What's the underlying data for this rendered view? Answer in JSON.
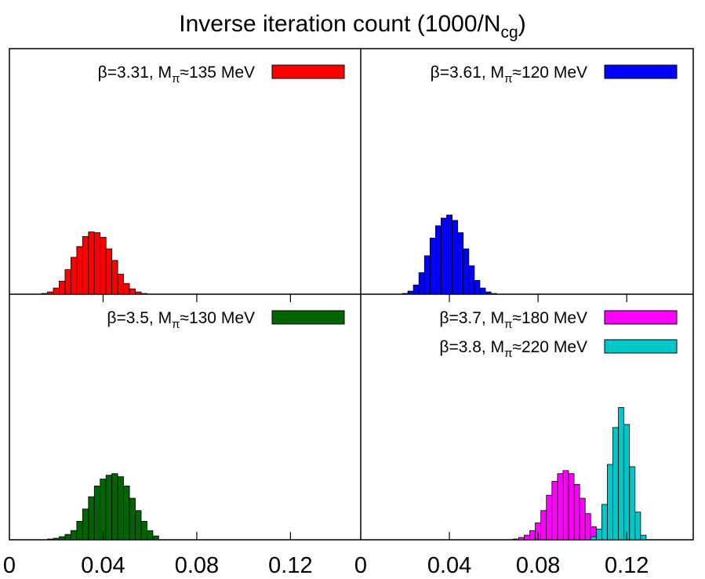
{
  "title": {
    "main": "Inverse iteration count (1000/N",
    "sub": "cg",
    "close": ")"
  },
  "chart_data": [
    {
      "type": "bar",
      "panel": "top-left",
      "xlim": [
        0,
        0.15
      ],
      "xticks": [],
      "legend_placement": "top-right",
      "bin_width": 0.0025,
      "series": [
        {
          "name": "β=3.31, Mπ≈135 MeV",
          "legend": {
            "prefix": "β=3.31, M",
            "sub": "π",
            "suffix": "≈135 MeV"
          },
          "color": "#ff0000",
          "x": [
            0.015,
            0.0175,
            0.02,
            0.0225,
            0.025,
            0.0275,
            0.03,
            0.0325,
            0.035,
            0.0375,
            0.04,
            0.0425,
            0.045,
            0.0475,
            0.05,
            0.0525,
            0.055,
            0.0575
          ],
          "counts": [
            1,
            3,
            8,
            17,
            32,
            48,
            62,
            75,
            81,
            80,
            74,
            59,
            44,
            26,
            14,
            7,
            3,
            1
          ]
        }
      ]
    },
    {
      "type": "bar",
      "panel": "top-right",
      "xlim": [
        0,
        0.15
      ],
      "xticks": [],
      "legend_placement": "top-right",
      "bin_width": 0.0025,
      "series": [
        {
          "name": "β=3.61, Mπ≈120 MeV",
          "legend": {
            "prefix": "β=3.61, M",
            "sub": "π",
            "suffix": "≈120 MeV"
          },
          "color": "#0000ff",
          "x": [
            0.02,
            0.0225,
            0.025,
            0.0275,
            0.03,
            0.0325,
            0.035,
            0.0375,
            0.04,
            0.0425,
            0.045,
            0.0475,
            0.05,
            0.0525,
            0.055,
            0.0575,
            0.06
          ],
          "counts": [
            1,
            4,
            12,
            28,
            50,
            73,
            89,
            99,
            103,
            96,
            80,
            59,
            37,
            18,
            8,
            3,
            1
          ]
        }
      ]
    },
    {
      "type": "bar",
      "panel": "bottom-left",
      "xlim": [
        0,
        0.15
      ],
      "xticks": [
        "0",
        "0.04",
        "0.08",
        "0.12"
      ],
      "xtick_values": [
        0,
        0.04,
        0.08,
        0.12
      ],
      "legend_placement": "top-right",
      "bin_width": 0.0025,
      "series": [
        {
          "name": "β=3.5, Mπ≈130 MeV",
          "legend": {
            "prefix": "β=3.5, M",
            "sub": "π",
            "suffix": "≈130 MeV"
          },
          "color": "#006400",
          "x": [
            0.0175,
            0.02,
            0.0225,
            0.025,
            0.0275,
            0.03,
            0.0325,
            0.035,
            0.0375,
            0.04,
            0.0425,
            0.045,
            0.0475,
            0.05,
            0.0525,
            0.055,
            0.0575,
            0.06,
            0.0625
          ],
          "counts": [
            1,
            2,
            4,
            7,
            12,
            24,
            40,
            56,
            70,
            79,
            84,
            86,
            82,
            70,
            54,
            38,
            24,
            12,
            5
          ]
        }
      ]
    },
    {
      "type": "bar",
      "panel": "bottom-right",
      "xlim": [
        0,
        0.15
      ],
      "xticks": [
        "0",
        "0.04",
        "0.08",
        "0.12"
      ],
      "xtick_values": [
        0,
        0.04,
        0.08,
        0.12
      ],
      "legend_placement": "top-right",
      "bin_width": 0.0025,
      "series": [
        {
          "name": "β=3.7, Mπ≈180 MeV",
          "legend": {
            "prefix": "β=3.7, M",
            "sub": "π",
            "suffix": "≈180 MeV"
          },
          "color": "#ff00ff",
          "x": [
            0.07,
            0.0725,
            0.075,
            0.0775,
            0.08,
            0.0825,
            0.085,
            0.0875,
            0.09,
            0.0925,
            0.095,
            0.0975,
            0.1,
            0.1025,
            0.105,
            0.1075
          ],
          "counts": [
            1,
            3,
            6,
            12,
            22,
            38,
            58,
            76,
            86,
            90,
            86,
            72,
            54,
            34,
            17,
            6
          ]
        },
        {
          "name": "β=3.8, Mπ≈220 MeV",
          "legend": {
            "prefix": "β=3.8, M",
            "sub": "π",
            "suffix": "≈220 MeV"
          },
          "color": "#00c8c8",
          "x": [
            0.105,
            0.1075,
            0.11,
            0.1125,
            0.115,
            0.1175,
            0.12,
            0.1225,
            0.125,
            0.1275
          ],
          "counts": [
            4,
            14,
            46,
            98,
            146,
            172,
            150,
            95,
            36,
            6
          ]
        }
      ]
    }
  ]
}
